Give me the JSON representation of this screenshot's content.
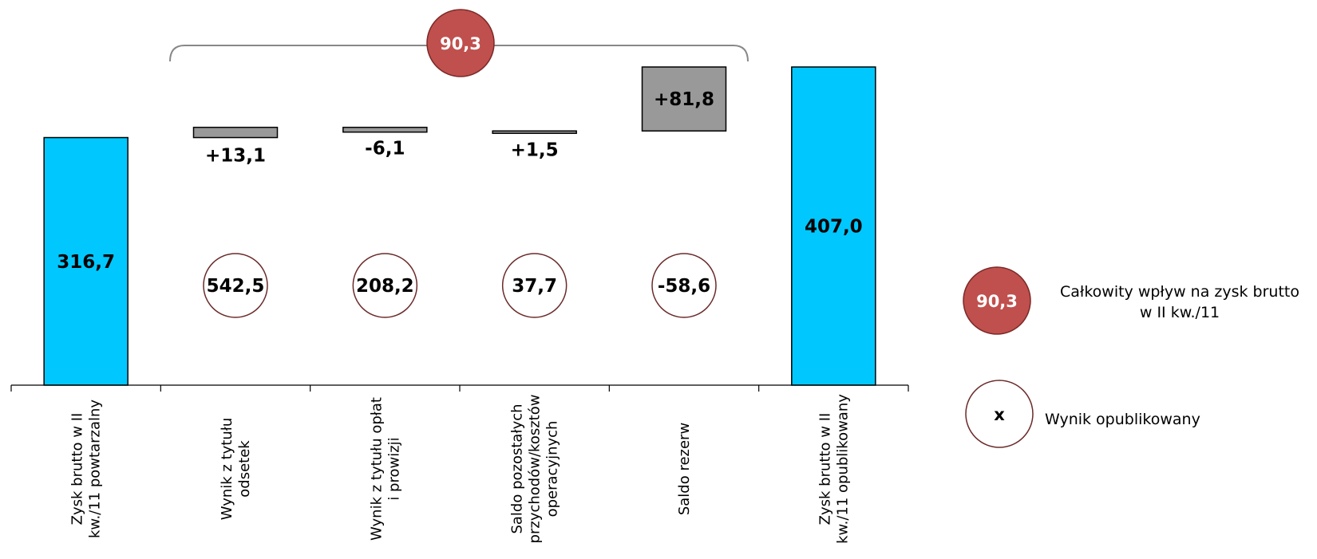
{
  "chart_data": {
    "type": "bar",
    "subtype": "waterfall",
    "categories": [
      [
        "Zysk brutto w II",
        "kw./11 powtarzalny"
      ],
      [
        "Wynik z tytułu",
        "odsetek"
      ],
      [
        "Wynik z tytułu opłat",
        "i prowizji"
      ],
      [
        "Saldo pozostałych",
        "przychodów/kosztów",
        "operacyjnych"
      ],
      [
        "Saldo rezerw"
      ],
      [
        "Zysk brutto w II",
        "kw./11 opublikowany"
      ]
    ],
    "bars": [
      {
        "kind": "total",
        "start": 0,
        "end": 316.7,
        "label": "316,7"
      },
      {
        "kind": "delta",
        "start": 316.7,
        "end": 329.8,
        "label": "+13,1"
      },
      {
        "kind": "delta",
        "start": 329.8,
        "end": 323.7,
        "label": "-6,1"
      },
      {
        "kind": "delta",
        "start": 323.7,
        "end": 325.2,
        "label": "+1,5"
      },
      {
        "kind": "delta",
        "start": 325.2,
        "end": 407.0,
        "label": "+81,8"
      },
      {
        "kind": "total",
        "start": 0,
        "end": 407.0,
        "label": "407,0"
      }
    ],
    "published_results": [
      "542,5",
      "208,2",
      "37,7",
      "-58,6"
    ],
    "total_impact": "90,3",
    "ylim": [
      0,
      407.0
    ],
    "grid": false,
    "colors": {
      "total_bar": "#00c8ff",
      "delta_bar": "#999999",
      "impact_circle": "#c0504d",
      "published_circle_border": "#6b2a2a"
    }
  },
  "legend": {
    "impact_value": "90,3",
    "impact_text_lines": [
      "Całkowity wpływ na zysk brutto",
      "w II kw./11"
    ],
    "published_symbol": "x",
    "published_text": "Wynik opublikowany"
  }
}
